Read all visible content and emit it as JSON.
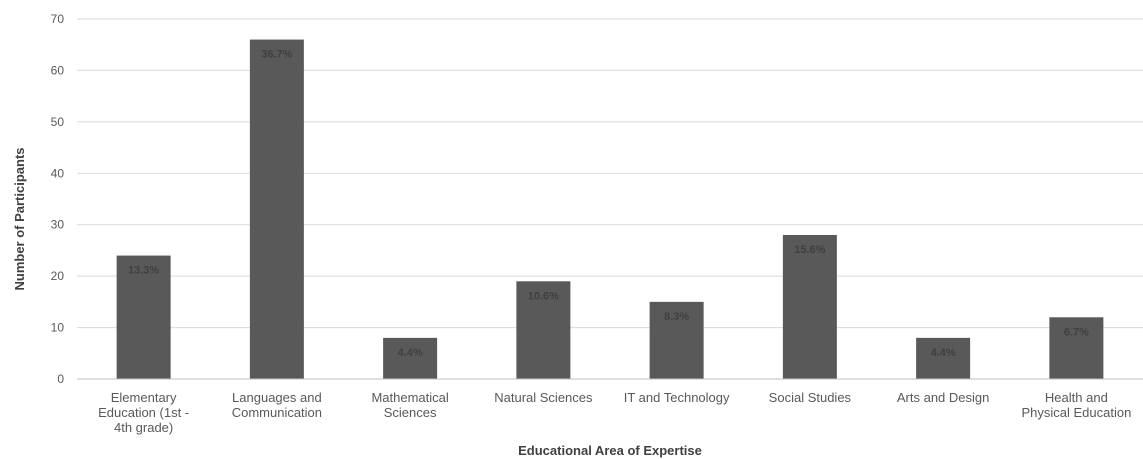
{
  "chart_data": {
    "type": "bar",
    "title": "",
    "xlabel": "Educational Area of Expertise",
    "ylabel": "Number of Participants",
    "ylim": [
      0,
      70
    ],
    "yticks": [
      0,
      10,
      20,
      30,
      40,
      50,
      60,
      70
    ],
    "grid": true,
    "bar_color": "#595959",
    "categories": [
      "Elementary Education (1st - 4th grade)",
      "Languages and Communication",
      "Mathematical Sciences",
      "Natural Sciences",
      "IT and Technology",
      "Social Studies",
      "Arts and Design",
      "Health and Physical Education"
    ],
    "category_lines": [
      [
        "Elementary",
        "Education (1st -",
        "4th grade)"
      ],
      [
        "Languages and",
        "Communication"
      ],
      [
        "Mathematical",
        "Sciences"
      ],
      [
        "Natural Sciences"
      ],
      [
        "IT and Technology"
      ],
      [
        "Social Studies"
      ],
      [
        "Arts and Design"
      ],
      [
        "Health and",
        "Physical Education"
      ]
    ],
    "values": [
      24,
      66,
      8,
      19,
      15,
      28,
      8,
      12
    ],
    "data_labels": [
      "13.3%",
      "36.7%",
      "4.4%",
      "10.6%",
      "8.3%",
      "15.6%",
      "4.4%",
      "6.7%"
    ]
  }
}
